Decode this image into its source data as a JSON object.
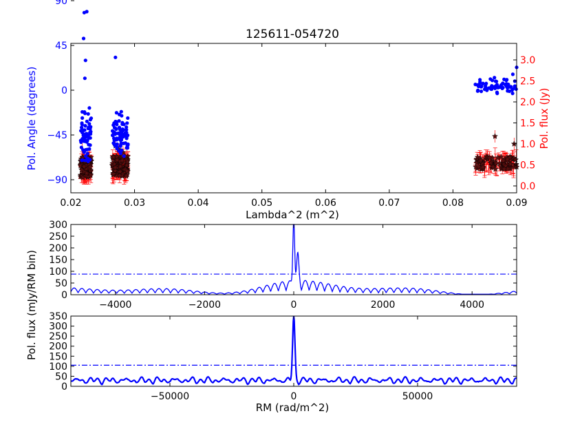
{
  "chart_data": [
    {
      "type": "scatter",
      "title": "125611-054720",
      "xlabel": "Lambda^2 (m^2)",
      "xlim": [
        0.02,
        0.09
      ],
      "x_ticks": [
        "0.02",
        "0.03",
        "0.04",
        "0.05",
        "0.06",
        "0.07",
        "0.08",
        "0.09"
      ],
      "ylabel_left": "Pol. Angle (degrees)",
      "ylabel_right": "Pol. flux (Jy)",
      "left_ticks": [
        "90",
        "45",
        "0",
        "−45",
        "−90"
      ],
      "right_ticks": [
        "3.0",
        "2.5",
        "2.0",
        "1.5",
        "1.0",
        "0.5",
        "0.0"
      ],
      "left_color": "#0000ff",
      "right_color": "#ff0000",
      "angle_groups": [
        {
          "x_range": [
            0.0215,
            0.0232
          ],
          "y_center": -30,
          "y_spread": 35,
          "n": 70
        },
        {
          "x_range": [
            0.0265,
            0.029
          ],
          "y_center": -30,
          "y_spread": 30,
          "n": 80
        },
        {
          "x_range": [
            0.0835,
            0.09
          ],
          "y_center": 4,
          "y_spread": 10,
          "n": 70
        }
      ],
      "angle_outliers": [
        [
          0.0221,
          78
        ],
        [
          0.0225,
          79
        ],
        [
          0.022,
          52
        ],
        [
          0.0223,
          30
        ],
        [
          0.0222,
          12
        ],
        [
          0.027,
          33
        ],
        [
          0.0219,
          -60
        ],
        [
          0.09,
          23
        ],
        [
          0.0894,
          16
        ]
      ],
      "flux_groups": [
        {
          "x_range": [
            0.0215,
            0.0232
          ],
          "y_center": 0.45,
          "y_spread": 0.25,
          "n": 90
        },
        {
          "x_range": [
            0.0265,
            0.029
          ],
          "y_center": 0.48,
          "y_spread": 0.25,
          "n": 100
        },
        {
          "x_range": [
            0.0835,
            0.09
          ],
          "y_center": 0.55,
          "y_spread": 0.15,
          "n": 90
        }
      ]
    },
    {
      "type": "line",
      "ylabel": "Pol. flux (mJy/RM bin)",
      "xlim": [
        -5000,
        5000
      ],
      "ylim": [
        0,
        300
      ],
      "x_ticks": [
        "−4000",
        "−2000",
        "0",
        "2000",
        "4000"
      ],
      "y_ticks": [
        "0",
        "50",
        "100",
        "150",
        "200",
        "250",
        "300"
      ],
      "threshold": 88,
      "peak": {
        "x": 0,
        "y": 295
      },
      "secondary_peak": {
        "x": 90,
        "y": 160
      },
      "color": "#0000ff"
    },
    {
      "type": "line",
      "xlabel": "RM (rad/m^2)",
      "xlim": [
        -90000,
        90000
      ],
      "ylim": [
        0,
        350
      ],
      "x_ticks": [
        "−50000",
        "0",
        "50000"
      ],
      "y_ticks": [
        "0",
        "50",
        "100",
        "150",
        "200",
        "250",
        "300",
        "350"
      ],
      "threshold": 105,
      "peak": {
        "x": 0,
        "y": 320
      },
      "color": "#0000ff"
    }
  ],
  "shared_ylabel": "Pol. flux (mJy/RM bin)"
}
